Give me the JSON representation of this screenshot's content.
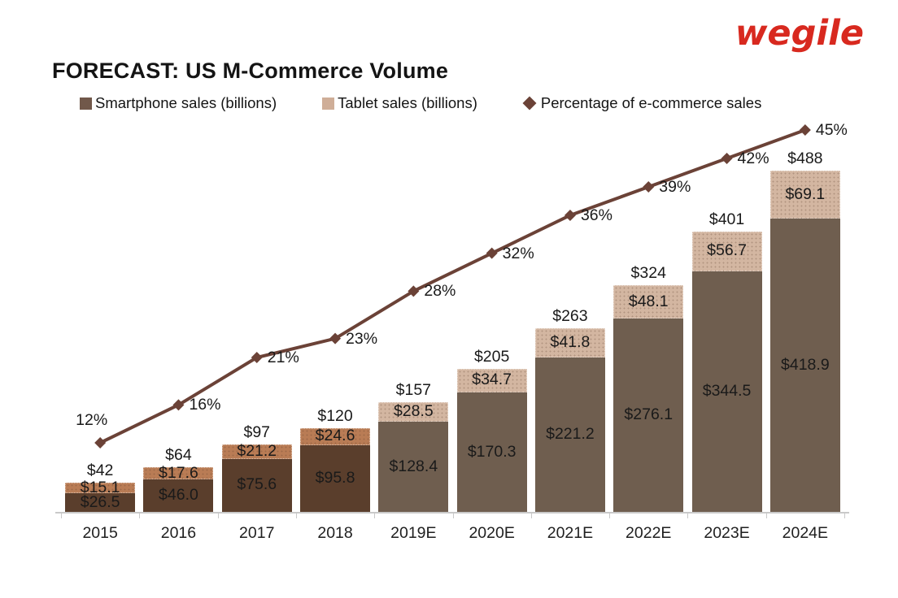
{
  "logo": {
    "text": "wegile",
    "color": "#d8291f"
  },
  "title": "FORECAST: US M-Commerce Volume",
  "legend": {
    "items": [
      {
        "label": "Smartphone sales (billions)",
        "marker": "square",
        "color": "#71584a"
      },
      {
        "label": "Tablet sales (billions)",
        "marker": "square",
        "color": "#cfae98"
      },
      {
        "label": "Percentage of e-commerce sales",
        "marker": "diamond",
        "color": "#6b4237"
      }
    ]
  },
  "chart_data": {
    "type": "bar",
    "subtype": "stacked-bars-with-percentage-line",
    "title": "FORECAST: US M-Commerce Volume",
    "categories": [
      "2015",
      "2016",
      "2017",
      "2018",
      "2019E",
      "2020E",
      "2021E",
      "2022E",
      "2023E",
      "2024E"
    ],
    "series": [
      {
        "name": "Smartphone sales (billions)",
        "type": "bar",
        "values": [
          26.5,
          46.0,
          75.6,
          95.8,
          128.4,
          170.3,
          221.2,
          276.1,
          344.5,
          418.9
        ],
        "labels": [
          "$26.5",
          "$46.0",
          "$75.6",
          "$95.8",
          "$128.4",
          "$170.3",
          "$221.2",
          "$276.1",
          "$344.5",
          "$418.9"
        ],
        "color_actual": "#5a3e2c",
        "color_estimate": "#6f5e4f"
      },
      {
        "name": "Tablet sales (billions)",
        "type": "bar",
        "values": [
          15.1,
          17.6,
          21.2,
          24.6,
          28.5,
          34.7,
          41.8,
          48.1,
          56.7,
          69.1
        ],
        "labels": [
          "$15.1",
          "$17.6",
          "$21.2",
          "$24.6",
          "$28.5",
          "$34.7",
          "$41.8",
          "$48.1",
          "$56.7",
          "$69.1"
        ],
        "color_actual": "#b97c55",
        "color_estimate": "#d3b6a1"
      },
      {
        "name": "Percentage of e-commerce sales",
        "type": "line",
        "values": [
          12,
          16,
          21,
          23,
          28,
          32,
          36,
          39,
          42,
          45
        ],
        "labels": [
          "12%",
          "16%",
          "21%",
          "23%",
          "28%",
          "32%",
          "36%",
          "39%",
          "42%",
          "45%"
        ],
        "color": "#6b4237"
      }
    ],
    "totals": [
      42,
      64,
      97,
      120,
      157,
      205,
      263,
      324,
      401,
      488
    ],
    "total_labels": [
      "$42",
      "$64",
      "$97",
      "$120",
      "$157",
      "$205",
      "$263",
      "$324",
      "$401",
      "$488"
    ],
    "estimate_from_index": 4,
    "axes": {
      "x_ticks_visible": true,
      "y_axis_visible": false,
      "grid": false,
      "value_ylim": [
        0,
        488
      ],
      "pct_values_shown": [
        12,
        45
      ]
    },
    "legend_position": "top",
    "axis_color": "#c9c9c9",
    "label_color": "#1a1a1a"
  }
}
